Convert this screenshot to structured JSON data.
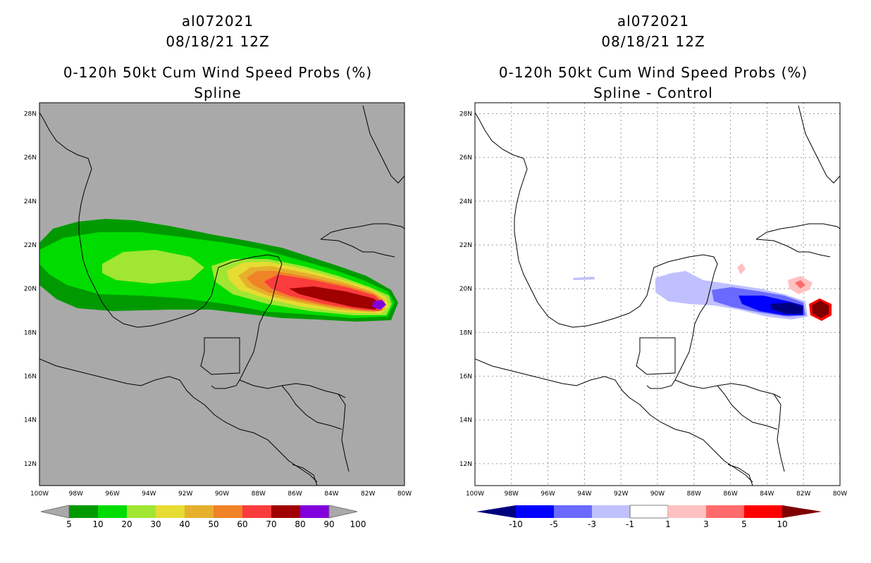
{
  "panels": [
    {
      "id": "left",
      "storm_id": "al072021",
      "datetime": "08/18/21 12Z",
      "product": "0-120h 50kt Cum Wind Speed Probs (%)",
      "subtitle": "Spline",
      "background": "#a9a9a9",
      "colorbar": {
        "labels": [
          "5",
          "10",
          "20",
          "30",
          "40",
          "50",
          "60",
          "70",
          "80",
          "90",
          "100"
        ],
        "colors": [
          "#a9a9a9",
          "#009a00",
          "#00dc00",
          "#a0e632",
          "#e6dc32",
          "#e6af2d",
          "#f08228",
          "#fa3c3c",
          "#a00000",
          "#8200dc",
          "#a9a9a9"
        ]
      }
    },
    {
      "id": "right",
      "storm_id": "al072021",
      "datetime": "08/18/21 12Z",
      "product": "0-120h 50kt Cum Wind Speed Probs (%)",
      "subtitle": "Spline - Control",
      "background": "#ffffff",
      "colorbar": {
        "labels": [
          "-10",
          "-5",
          "-3",
          "-1",
          "1",
          "3",
          "5",
          "10"
        ],
        "colors": [
          "#00007f",
          "#0000ff",
          "#6a6aff",
          "#c0c0ff",
          "#ffffff",
          "#ffc0c0",
          "#ff6a6a",
          "#ff0000",
          "#7f0000"
        ]
      }
    }
  ],
  "axes": {
    "lat_labels": [
      "28N",
      "26N",
      "24N",
      "22N",
      "20N",
      "18N",
      "16N",
      "14N",
      "12N"
    ],
    "lon_labels": [
      "100W",
      "98W",
      "96W",
      "94W",
      "92W",
      "90W",
      "88W",
      "86W",
      "84W",
      "82W",
      "80W"
    ],
    "lat_range": [
      11,
      28.5
    ],
    "lon_range": [
      -100,
      -80
    ]
  }
}
